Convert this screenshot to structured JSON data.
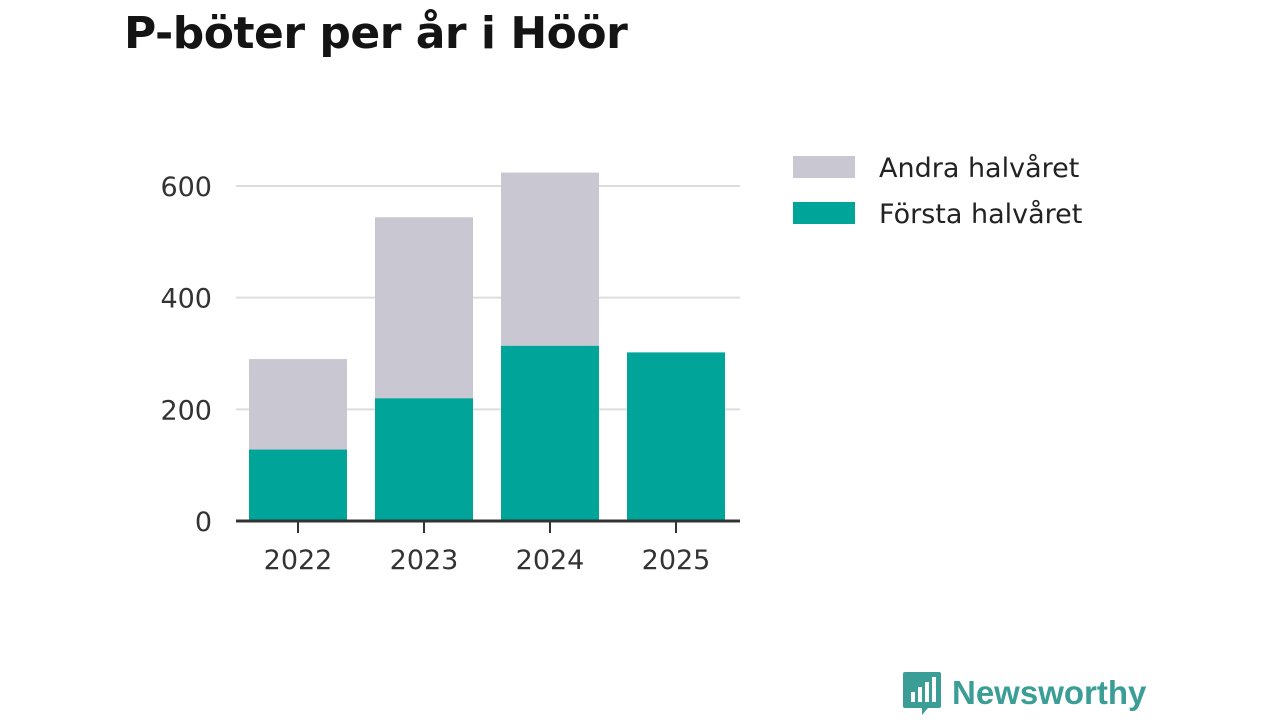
{
  "chart_data": {
    "type": "bar",
    "stacked": true,
    "title": "P-böter per år i Höör",
    "categories": [
      "2022",
      "2023",
      "2024",
      "2025"
    ],
    "series": [
      {
        "name": "Första halvåret",
        "values": [
          128,
          220,
          314,
          302
        ],
        "color": "#00a499"
      },
      {
        "name": "Andra halvåret",
        "values": [
          162,
          324,
          310,
          0
        ],
        "color": "#c8c7d2"
      }
    ],
    "ylim": [
      0,
      650
    ],
    "yticks": [
      0,
      200,
      400,
      600
    ],
    "xlabel": "",
    "ylabel": "",
    "grid": true,
    "legend": [
      {
        "label": "Andra halvåret",
        "color": "#c8c7d2"
      },
      {
        "label": "Första halvåret",
        "color": "#00a499"
      }
    ],
    "legend_position": "top-right"
  },
  "brand": {
    "name": "Newsworthy",
    "color": "#3a9d96"
  }
}
